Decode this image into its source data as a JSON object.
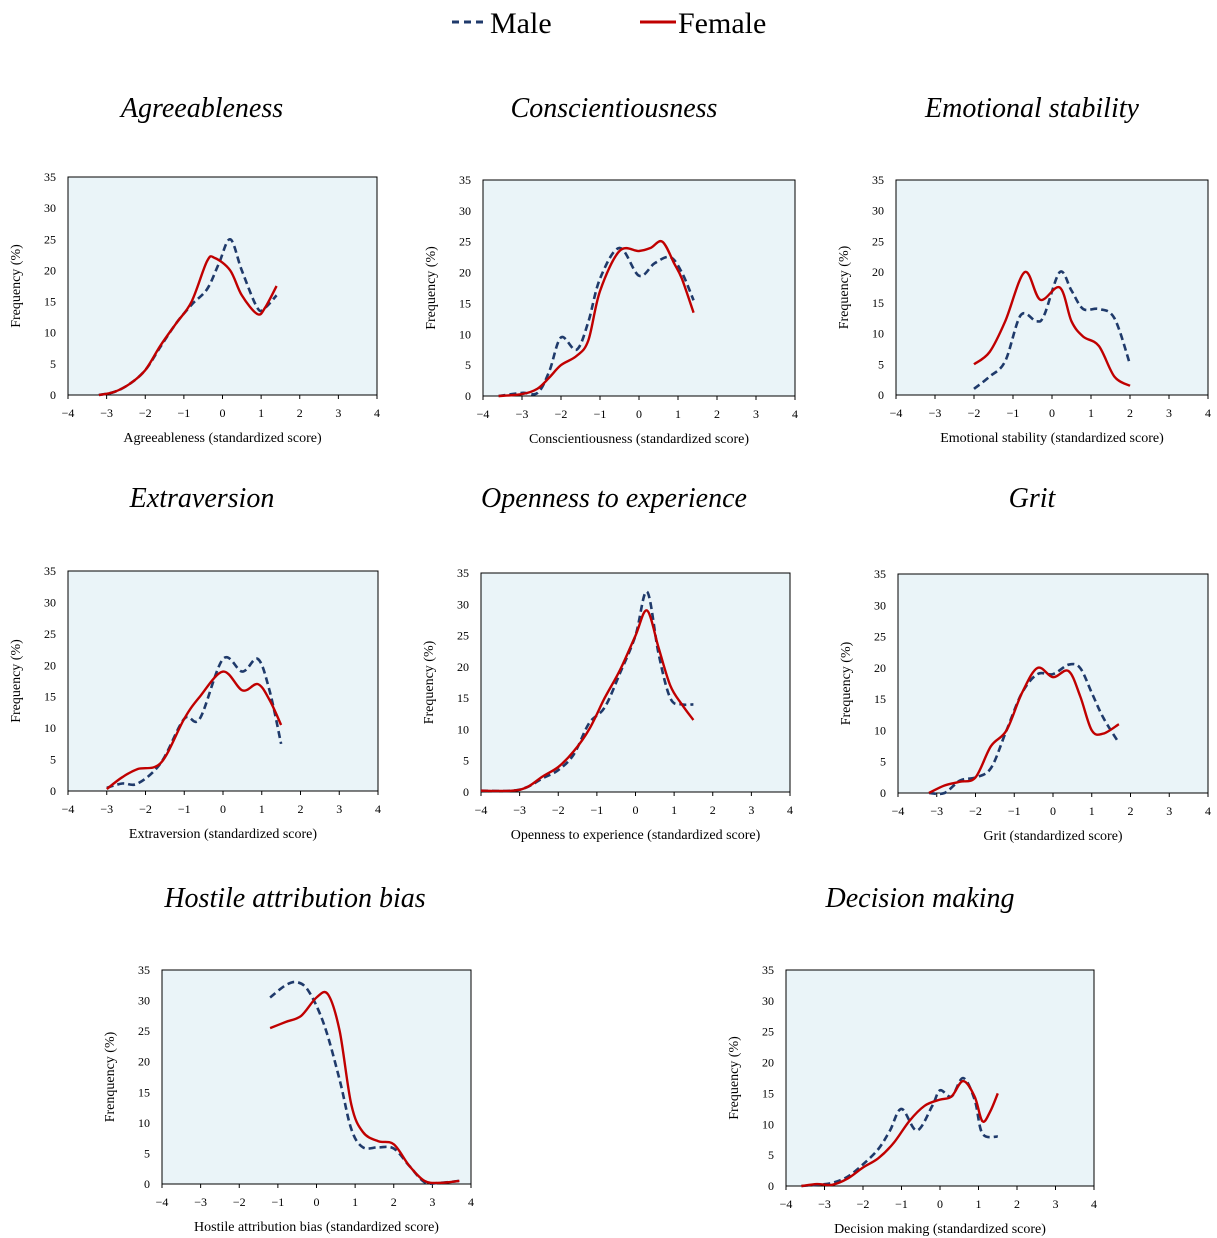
{
  "legend": {
    "male_label": "Male",
    "female_label": "Female",
    "male_color": "#1f3a6b",
    "female_color": "#c00000"
  },
  "chart_data": [
    {
      "type": "line",
      "title": "Agreeableness",
      "xlabel": "Agreeableness (standardized score)",
      "ylabel": "Frequency (%)",
      "xlim": [
        -4,
        4
      ],
      "ylim": [
        0,
        35
      ],
      "xticks": [
        "−4",
        "−3",
        "−2",
        "−1",
        "0",
        "1",
        "2",
        "3",
        "4"
      ],
      "yticks": [
        "0",
        "5",
        "10",
        "15",
        "20",
        "25",
        "30",
        "35"
      ],
      "series": [
        {
          "name": "Male",
          "x": [
            -3.2,
            -2.8,
            -2.4,
            -2.0,
            -1.6,
            -1.2,
            -0.8,
            -0.4,
            -0.1,
            0.2,
            0.5,
            0.9,
            1.1,
            1.4
          ],
          "y": [
            0,
            0.5,
            1.8,
            4,
            7.8,
            11.5,
            14.5,
            17,
            21,
            25,
            20,
            14,
            14,
            16
          ]
        },
        {
          "name": "Female",
          "x": [
            -3.2,
            -2.8,
            -2.4,
            -2.0,
            -1.6,
            -1.2,
            -0.8,
            -0.4,
            -0.2,
            0.2,
            0.5,
            0.9,
            1.1,
            1.4
          ],
          "y": [
            0,
            0.5,
            1.8,
            4,
            8,
            11.5,
            15,
            21.5,
            22,
            20,
            16,
            13,
            14,
            17.5
          ]
        }
      ]
    },
    {
      "type": "line",
      "title": "Conscientiousness",
      "xlabel": "Conscientiousness (standardized score)",
      "ylabel": "Frequency (%)",
      "xlim": [
        -4,
        4
      ],
      "ylim": [
        0,
        35
      ],
      "xticks": [
        "−4",
        "−3",
        "−2",
        "−1",
        "0",
        "1",
        "2",
        "3",
        "4"
      ],
      "yticks": [
        "0",
        "5",
        "10",
        "15",
        "20",
        "25",
        "30",
        "35"
      ],
      "series": [
        {
          "name": "Male",
          "x": [
            -3.6,
            -3.0,
            -2.6,
            -2.3,
            -2.0,
            -1.6,
            -1.3,
            -1.0,
            -0.5,
            0.0,
            0.4,
            0.8,
            1.1,
            1.4
          ],
          "y": [
            0,
            0.5,
            0.5,
            4,
            9.5,
            7.5,
            12,
            19,
            24,
            19.5,
            21.5,
            22.5,
            20,
            15.5
          ]
        },
        {
          "name": "Female",
          "x": [
            -3.6,
            -3.0,
            -2.6,
            -2.3,
            -2.0,
            -1.6,
            -1.3,
            -1.0,
            -0.5,
            0.0,
            0.3,
            0.6,
            0.9,
            1.1,
            1.4
          ],
          "y": [
            0,
            0.3,
            1.2,
            3,
            5,
            6.5,
            9,
            17,
            23.5,
            23.5,
            24,
            25,
            21.5,
            19,
            13.5
          ]
        }
      ]
    },
    {
      "type": "line",
      "title": "Emotional stability",
      "xlabel": "Emotional stability (standardized score)",
      "ylabel": "Frequency (%)",
      "xlim": [
        -4,
        4
      ],
      "ylim": [
        0,
        35
      ],
      "xticks": [
        "−4",
        "−3",
        "−2",
        "−1",
        "0",
        "1",
        "2",
        "3",
        "4"
      ],
      "yticks": [
        "0",
        "5",
        "10",
        "15",
        "20",
        "25",
        "30",
        "35"
      ],
      "series": [
        {
          "name": "Male",
          "x": [
            -2.0,
            -1.6,
            -1.2,
            -0.8,
            -0.4,
            -0.2,
            0.2,
            0.5,
            0.8,
            1.2,
            1.6,
            2.0
          ],
          "y": [
            1,
            3,
            5.5,
            13,
            12,
            13,
            20,
            17,
            14,
            14,
            12.5,
            5
          ]
        },
        {
          "name": "Female",
          "x": [
            -2.0,
            -1.6,
            -1.2,
            -0.7,
            -0.3,
            0.2,
            0.5,
            0.8,
            1.2,
            1.6,
            2.0
          ],
          "y": [
            5,
            7,
            12,
            20,
            15.5,
            17.5,
            12,
            9.5,
            8,
            3,
            1.5
          ]
        }
      ]
    },
    {
      "type": "line",
      "title": "Extraversion",
      "xlabel": "Extraversion (standardized score)",
      "ylabel": "Frequency (%)",
      "xlim": [
        -4,
        4
      ],
      "ylim": [
        0,
        35
      ],
      "xticks": [
        "−4",
        "−3",
        "−2",
        "−1",
        "0",
        "1",
        "2",
        "3",
        "4"
      ],
      "yticks": [
        "0",
        "5",
        "10",
        "15",
        "20",
        "25",
        "30",
        "35"
      ],
      "series": [
        {
          "name": "Male",
          "x": [
            -3.0,
            -2.6,
            -2.2,
            -1.6,
            -1.0,
            -0.6,
            0.0,
            0.5,
            0.9,
            1.2,
            1.5
          ],
          "y": [
            0.5,
            1.2,
            1.2,
            4.5,
            11.5,
            11.5,
            21,
            19,
            21,
            16,
            7.5
          ]
        },
        {
          "name": "Female",
          "x": [
            -3.0,
            -2.6,
            -2.2,
            -1.6,
            -1.0,
            -0.6,
            0.0,
            0.5,
            0.9,
            1.2,
            1.5
          ],
          "y": [
            0.3,
            2.2,
            3.5,
            4.5,
            11.5,
            15,
            19,
            16,
            17,
            14.5,
            10.5
          ]
        }
      ]
    },
    {
      "type": "line",
      "title": "Openness to experience",
      "xlabel": "Openness to experience (standardized score)",
      "ylabel": "Frequency (%)",
      "xlim": [
        -4,
        4
      ],
      "ylim": [
        0,
        35
      ],
      "xticks": [
        "−4",
        "−3",
        "−2",
        "−1",
        "0",
        "1",
        "2",
        "3",
        "4"
      ],
      "yticks": [
        "0",
        "5",
        "10",
        "15",
        "20",
        "25",
        "30",
        "35"
      ],
      "series": [
        {
          "name": "Male",
          "x": [
            -4.0,
            -3.2,
            -2.8,
            -2.4,
            -2.0,
            -1.6,
            -1.2,
            -0.8,
            -0.4,
            0.0,
            0.3,
            0.6,
            0.9,
            1.2,
            1.5
          ],
          "y": [
            0.2,
            0.2,
            0.8,
            2.2,
            3.5,
            6,
            11,
            13.5,
            19,
            25,
            32,
            22,
            15,
            14,
            14
          ]
        },
        {
          "name": "Female",
          "x": [
            -4.0,
            -3.2,
            -2.8,
            -2.4,
            -2.0,
            -1.6,
            -1.2,
            -0.8,
            -0.4,
            0.0,
            0.3,
            0.6,
            0.9,
            1.2,
            1.5
          ],
          "y": [
            0.2,
            0.2,
            0.8,
            2.5,
            4,
            6.5,
            10,
            15,
            19.5,
            25,
            29,
            23,
            17,
            14,
            11.5
          ]
        }
      ]
    },
    {
      "type": "line",
      "title": "Grit",
      "xlabel": "Grit (standardized score)",
      "ylabel": "Frequency (%)",
      "xlim": [
        -4,
        4
      ],
      "ylim": [
        0,
        35
      ],
      "xticks": [
        "−4",
        "−3",
        "−2",
        "−1",
        "0",
        "1",
        "2",
        "3",
        "4"
      ],
      "yticks": [
        "0",
        "5",
        "10",
        "15",
        "20",
        "25",
        "30",
        "35"
      ],
      "series": [
        {
          "name": "Male",
          "x": [
            -3.2,
            -2.8,
            -2.4,
            -2.0,
            -1.6,
            -1.2,
            -0.8,
            -0.4,
            0.0,
            0.4,
            0.7,
            1.0,
            1.3,
            1.7
          ],
          "y": [
            0,
            0,
            2,
            2.5,
            4,
            10,
            16,
            19,
            19,
            20.5,
            20,
            16,
            12,
            8
          ]
        },
        {
          "name": "Female",
          "x": [
            -3.2,
            -2.8,
            -2.4,
            -2.0,
            -1.6,
            -1.2,
            -0.8,
            -0.4,
            0.0,
            0.4,
            0.7,
            1.0,
            1.3,
            1.7
          ],
          "y": [
            0,
            1.2,
            1.8,
            2.5,
            7.5,
            10,
            16,
            20,
            18.5,
            19.5,
            15.5,
            10,
            9.5,
            11
          ]
        }
      ]
    },
    {
      "type": "line",
      "title": "Hostile attribution bias",
      "xlabel": "Hostile attribution bias (standardized score)",
      "ylabel": "Frenquency (%)",
      "xlim": [
        -4,
        4
      ],
      "ylim": [
        0,
        35
      ],
      "xticks": [
        "−4",
        "−3",
        "−2",
        "−1",
        "0",
        "1",
        "2",
        "3",
        "4"
      ],
      "yticks": [
        "0",
        "5",
        "10",
        "15",
        "20",
        "25",
        "30",
        "35"
      ],
      "series": [
        {
          "name": "Male",
          "x": [
            -1.2,
            -0.8,
            -0.5,
            -0.2,
            0.2,
            0.6,
            0.9,
            1.2,
            1.6,
            2.0,
            2.4,
            2.8,
            3.2,
            3.7
          ],
          "y": [
            30.5,
            32.5,
            33,
            31.5,
            26,
            17,
            9,
            6,
            6,
            5.8,
            3,
            0.3,
            0.2,
            0.5
          ]
        },
        {
          "name": "Female",
          "x": [
            -1.2,
            -0.8,
            -0.4,
            0.0,
            0.3,
            0.6,
            0.9,
            1.2,
            1.6,
            2.0,
            2.4,
            2.8,
            3.2,
            3.7
          ],
          "y": [
            25.5,
            26.5,
            27.5,
            30.5,
            31,
            25,
            13,
            8.5,
            7,
            6.5,
            3,
            0.5,
            0.2,
            0.5
          ]
        }
      ]
    },
    {
      "type": "line",
      "title": "Decision making",
      "xlabel": "Decision making (standardized score)",
      "ylabel": "Frequency (%)",
      "xlim": [
        -4,
        4
      ],
      "ylim": [
        0,
        35
      ],
      "xticks": [
        "−4",
        "−3",
        "−2",
        "−1",
        "0",
        "1",
        "2",
        "3",
        "4"
      ],
      "yticks": [
        "0",
        "5",
        "10",
        "15",
        "20",
        "25",
        "30",
        "35"
      ],
      "series": [
        {
          "name": "Male",
          "x": [
            -3.6,
            -3.2,
            -2.8,
            -2.4,
            -2.0,
            -1.6,
            -1.3,
            -1.0,
            -0.6,
            -0.2,
            0.0,
            0.3,
            0.6,
            0.9,
            1.1,
            1.5
          ],
          "y": [
            0,
            0.2,
            0.5,
            1.5,
            3.5,
            6,
            9,
            12.5,
            9,
            13,
            15.5,
            14.5,
            17.5,
            14,
            8.5,
            8
          ]
        },
        {
          "name": "Female",
          "x": [
            -3.6,
            -3.2,
            -2.8,
            -2.4,
            -2.0,
            -1.6,
            -1.2,
            -0.8,
            -0.4,
            0.0,
            0.3,
            0.6,
            0.9,
            1.1,
            1.3,
            1.5
          ],
          "y": [
            0,
            0.3,
            0.2,
            1.2,
            3,
            4.5,
            7,
            10.5,
            13,
            14,
            14.5,
            17,
            14.5,
            10.5,
            12,
            15
          ]
        }
      ]
    }
  ]
}
